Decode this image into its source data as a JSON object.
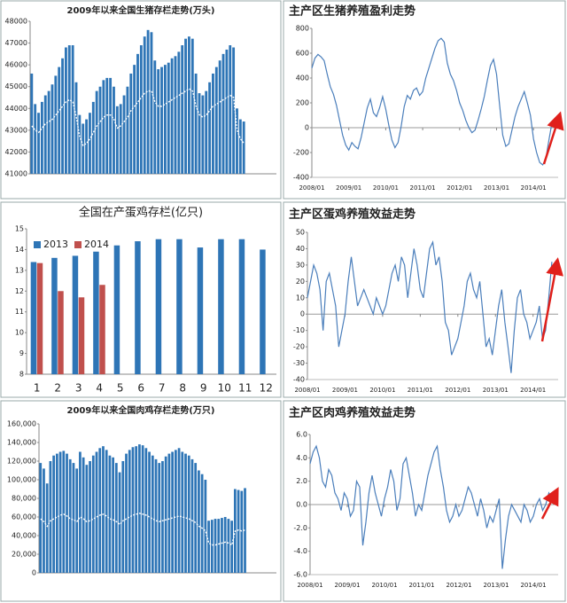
{
  "chart_data": [
    {
      "type": "bar",
      "title": "2009年以来全国生猪存栏走势(万头)",
      "ylim": [
        41000,
        48000
      ],
      "yticks": [
        41000,
        42000,
        43000,
        44000,
        45000,
        46000,
        47000,
        48000
      ],
      "series": [
        {
          "type": "bar",
          "color": "#2e75b6",
          "values": [
            45600,
            44200,
            43800,
            44300,
            44600,
            44800,
            45100,
            45500,
            45900,
            46300,
            46800,
            46900,
            46900,
            45200,
            43700,
            43300,
            43500,
            43800,
            44300,
            44800,
            45000,
            45300,
            45400,
            45400,
            45000,
            44100,
            44200,
            44600,
            45000,
            45600,
            46000,
            46500,
            46900,
            47300,
            47600,
            47500,
            46200,
            45800,
            45900,
            46000,
            46100,
            46300,
            46400,
            46600,
            46900,
            47200,
            47300,
            47200,
            45600,
            44700,
            44600,
            44800,
            45200,
            45600,
            45900,
            46200,
            46500,
            46700,
            46900,
            46800,
            44000,
            43500,
            43400,
            null,
            null,
            null,
            null,
            null,
            null,
            null,
            null,
            null
          ]
        },
        {
          "type": "line",
          "color": "#ffffff",
          "values": [
            43200,
            43000,
            42900,
            43100,
            43300,
            43400,
            43500,
            43700,
            43900,
            44100,
            44300,
            44400,
            44300,
            43600,
            42700,
            42300,
            42400,
            42600,
            42900,
            43200,
            43400,
            43600,
            43700,
            43700,
            43500,
            43100,
            43200,
            43400,
            43600,
            43900,
            44100,
            44300,
            44500,
            44700,
            44800,
            44800,
            44300,
            44100,
            44100,
            44200,
            44300,
            44400,
            44500,
            44600,
            44700,
            44800,
            44900,
            44800,
            44100,
            43700,
            43600,
            43700,
            43900,
            44100,
            44200,
            44300,
            44400,
            44500,
            44600,
            44500,
            43000,
            42600,
            42400,
            null,
            null,
            null,
            null,
            null,
            null,
            null,
            null,
            null
          ]
        }
      ]
    },
    {
      "type": "line",
      "title": "主产区生猪养殖盈利走势",
      "xlim": [
        0,
        80
      ],
      "xticks": [
        {
          "value": 0,
          "label": "2008/01"
        },
        {
          "value": 12,
          "label": "2009/01"
        },
        {
          "value": 24,
          "label": "2010/01"
        },
        {
          "value": 36,
          "label": "2011/01"
        },
        {
          "value": 48,
          "label": "2012/01"
        },
        {
          "value": 60,
          "label": "2013/01"
        },
        {
          "value": 72,
          "label": "2014/01"
        }
      ],
      "ylim": [
        -400,
        800
      ],
      "yticks": [
        -400,
        -200,
        0,
        200,
        400,
        600,
        800
      ],
      "series": [
        {
          "color": "#4a7ebb",
          "x": [
            0,
            1,
            2,
            3,
            4,
            5,
            6,
            7,
            8,
            9,
            10,
            11,
            12,
            13,
            14,
            15,
            16,
            17,
            18,
            19,
            20,
            21,
            22,
            23,
            24,
            25,
            26,
            27,
            28,
            29,
            30,
            31,
            32,
            33,
            34,
            35,
            36,
            37,
            38,
            39,
            40,
            41,
            42,
            43,
            44,
            45,
            46,
            47,
            48,
            49,
            50,
            51,
            52,
            53,
            54,
            55,
            56,
            57,
            58,
            59,
            60,
            61,
            62,
            63,
            64,
            65,
            66,
            67,
            68,
            69,
            70,
            71,
            72,
            73,
            74,
            75,
            76,
            77,
            78
          ],
          "values": [
            480,
            560,
            590,
            570,
            540,
            430,
            330,
            270,
            180,
            60,
            -60,
            -140,
            -180,
            -120,
            -150,
            -170,
            -80,
            40,
            160,
            230,
            120,
            90,
            160,
            250,
            150,
            20,
            -100,
            -160,
            -120,
            10,
            170,
            260,
            230,
            300,
            320,
            260,
            290,
            400,
            480,
            560,
            640,
            700,
            720,
            690,
            520,
            430,
            380,
            300,
            200,
            140,
            60,
            0,
            -40,
            -20,
            60,
            150,
            250,
            380,
            500,
            550,
            430,
            180,
            -60,
            -150,
            -130,
            -20,
            90,
            170,
            230,
            290,
            200,
            100,
            -90,
            -200,
            -280,
            -300,
            -250,
            -100,
            40
          ]
        }
      ]
    },
    {
      "type": "bar",
      "title": "全国在产蛋鸡存栏(亿只)",
      "categories": [
        "1",
        "2",
        "3",
        "4",
        "5",
        "6",
        "7",
        "8",
        "9",
        "10",
        "11",
        "12"
      ],
      "ylim": [
        8,
        15
      ],
      "yticks": [
        8,
        9,
        10,
        11,
        12,
        13,
        14,
        15
      ],
      "legend": "top-left",
      "series": [
        {
          "name": "2013",
          "color": "#2e75b6",
          "values": [
            13.4,
            13.6,
            13.7,
            13.9,
            14.2,
            14.4,
            14.5,
            14.5,
            14.1,
            14.5,
            14.5,
            14.0
          ]
        },
        {
          "name": "2014",
          "color": "#c0504d",
          "values": [
            13.35,
            12.0,
            11.7,
            12.3,
            null,
            null,
            null,
            null,
            null,
            null,
            null,
            null
          ]
        }
      ]
    },
    {
      "type": "line",
      "title": "主产区蛋鸡养殖效益走势",
      "xlim": [
        0,
        80
      ],
      "xticks": [
        {
          "value": 0,
          "label": "2008/01"
        },
        {
          "value": 12,
          "label": "2009/01"
        },
        {
          "value": 24,
          "label": "2010/01"
        },
        {
          "value": 36,
          "label": "2011/01"
        },
        {
          "value": 48,
          "label": "2012/01"
        },
        {
          "value": 60,
          "label": "2013/01"
        },
        {
          "value": 72,
          "label": "2014/01"
        }
      ],
      "ylim": [
        -40,
        50
      ],
      "yticks": [
        -40,
        -30,
        -20,
        -10,
        0,
        10,
        20,
        30,
        40,
        50
      ],
      "series": [
        {
          "color": "#4a7ebb",
          "x": [
            0,
            1,
            2,
            3,
            4,
            5,
            6,
            7,
            8,
            9,
            10,
            11,
            12,
            13,
            14,
            15,
            16,
            17,
            18,
            19,
            20,
            21,
            22,
            23,
            24,
            25,
            26,
            27,
            28,
            29,
            30,
            31,
            32,
            33,
            34,
            35,
            36,
            37,
            38,
            39,
            40,
            41,
            42,
            43,
            44,
            45,
            46,
            47,
            48,
            49,
            50,
            51,
            52,
            53,
            54,
            55,
            56,
            57,
            58,
            59,
            60,
            61,
            62,
            63,
            64,
            65,
            66,
            67,
            68,
            69,
            70,
            71,
            72,
            73,
            74,
            75,
            76,
            77,
            78
          ],
          "values": [
            10,
            20,
            30,
            25,
            15,
            -10,
            20,
            25,
            15,
            5,
            -20,
            -10,
            0,
            20,
            35,
            20,
            5,
            10,
            15,
            10,
            5,
            0,
            10,
            5,
            0,
            5,
            15,
            25,
            30,
            20,
            35,
            30,
            10,
            25,
            40,
            30,
            15,
            10,
            25,
            40,
            44,
            30,
            35,
            20,
            -5,
            -10,
            -25,
            -20,
            -15,
            -5,
            5,
            20,
            25,
            15,
            10,
            20,
            0,
            -20,
            -15,
            -25,
            -10,
            5,
            15,
            -5,
            -20,
            -36,
            -10,
            10,
            15,
            0,
            -5,
            -15,
            -10,
            -5,
            5,
            -15,
            -10,
            10,
            32
          ]
        }
      ]
    },
    {
      "type": "bar",
      "title": "2009年以来全国肉鸡存栏走势(万只)",
      "ylim": [
        0,
        160000
      ],
      "yticks": [
        0,
        {
          "value": 20000,
          "label": "20,000"
        },
        {
          "value": 40000,
          "label": "40,000"
        },
        {
          "value": 60000,
          "label": "60,000"
        },
        {
          "value": 80000,
          "label": "80,000"
        },
        {
          "value": 100000,
          "label": "100,000"
        },
        {
          "value": 120000,
          "label": "120,000"
        },
        {
          "value": 140000,
          "label": "140,000"
        },
        {
          "value": 160000,
          "label": "160,000"
        }
      ],
      "series": [
        {
          "type": "bar",
          "color": "#2e75b6",
          "values": [
            118000,
            112000,
            96000,
            120000,
            126000,
            128000,
            130000,
            131000,
            128000,
            122000,
            118000,
            112000,
            130000,
            124000,
            116000,
            120000,
            126000,
            130000,
            134000,
            136000,
            132000,
            126000,
            124000,
            118000,
            108000,
            120000,
            128000,
            132000,
            135000,
            136000,
            138000,
            137000,
            134000,
            130000,
            126000,
            122000,
            118000,
            120000,
            125000,
            128000,
            130000,
            132000,
            134000,
            130000,
            128000,
            126000,
            122000,
            118000,
            110000,
            106000,
            100000,
            56000,
            57000,
            58000,
            58000,
            59000,
            60000,
            58000,
            56000,
            90000,
            89000,
            88000,
            91000,
            null,
            null,
            null,
            null,
            null,
            null,
            null,
            null,
            null
          ]
        },
        {
          "type": "line",
          "color": "#ffffff",
          "values": [
            58000,
            55000,
            50000,
            56000,
            58000,
            60000,
            62000,
            63000,
            61000,
            58000,
            57000,
            55000,
            60000,
            58000,
            55000,
            56000,
            58000,
            60000,
            62000,
            63000,
            61000,
            58000,
            57000,
            55000,
            52000,
            56000,
            58000,
            60000,
            62000,
            63000,
            64000,
            63000,
            62000,
            60000,
            58000,
            56000,
            55000,
            56000,
            57000,
            58000,
            59000,
            60000,
            61000,
            60000,
            59000,
            58000,
            56000,
            54000,
            50000,
            48000,
            45000,
            32000,
            30000,
            30000,
            31000,
            32000,
            33000,
            32000,
            30000,
            45000,
            46000,
            45000,
            46000,
            null,
            null,
            null,
            null,
            null,
            null,
            null,
            null,
            null
          ]
        }
      ]
    },
    {
      "type": "line",
      "title": "主产区肉鸡养殖效益走势",
      "xlim": [
        0,
        80
      ],
      "xticks": [
        {
          "value": 0,
          "label": "2008/01"
        },
        {
          "value": 12,
          "label": "2009/01"
        },
        {
          "value": 24,
          "label": "2010/01"
        },
        {
          "value": 36,
          "label": "2011/01"
        },
        {
          "value": 48,
          "label": "2012/01"
        },
        {
          "value": 60,
          "label": "2013/01"
        },
        {
          "value": 72,
          "label": "2014/01"
        }
      ],
      "ylim": [
        -6,
        6
      ],
      "yticks": [
        {
          "value": -6,
          "label": "-6.0"
        },
        {
          "value": -4,
          "label": "-4.0"
        },
        {
          "value": -2,
          "label": "-2.0"
        },
        {
          "value": 0,
          "label": "0.0"
        },
        {
          "value": 2,
          "label": "2.0"
        },
        {
          "value": 4,
          "label": "4.0"
        },
        {
          "value": 6,
          "label": "6.0"
        }
      ],
      "series": [
        {
          "color": "#4a7ebb",
          "x": [
            0,
            1,
            2,
            3,
            4,
            5,
            6,
            7,
            8,
            9,
            10,
            11,
            12,
            13,
            14,
            15,
            16,
            17,
            18,
            19,
            20,
            21,
            22,
            23,
            24,
            25,
            26,
            27,
            28,
            29,
            30,
            31,
            32,
            33,
            34,
            35,
            36,
            37,
            38,
            39,
            40,
            41,
            42,
            43,
            44,
            45,
            46,
            47,
            48,
            49,
            50,
            51,
            52,
            53,
            54,
            55,
            56,
            57,
            58,
            59,
            60,
            61,
            62,
            63,
            64,
            65,
            66,
            67,
            68,
            69,
            70,
            71,
            72,
            73,
            74,
            75,
            76,
            77,
            78
          ],
          "values": [
            3.5,
            4.5,
            5.0,
            4.0,
            2.0,
            1.5,
            3.0,
            2.5,
            1.0,
            0.5,
            -0.5,
            1.0,
            0.5,
            -1.0,
            -0.5,
            2.0,
            1.5,
            -3.5,
            -1.5,
            1.0,
            2.5,
            1.0,
            0.0,
            -1.0,
            0.5,
            1.5,
            3.0,
            2.0,
            -0.5,
            0.5,
            3.5,
            4.0,
            2.5,
            1.0,
            -1.0,
            0.0,
            -0.5,
            1.0,
            2.5,
            3.5,
            4.5,
            5.0,
            3.0,
            1.5,
            -0.5,
            -1.5,
            -1.0,
            0.0,
            -1.0,
            -0.5,
            0.5,
            1.5,
            1.0,
            0.0,
            -1.0,
            0.5,
            -0.5,
            -2.0,
            -1.0,
            -1.5,
            -0.5,
            0.5,
            -5.5,
            -3.0,
            -1.0,
            0.0,
            -0.5,
            -1.0,
            -1.5,
            0.0,
            -0.5,
            -1.5,
            -1.0,
            0.0,
            0.5,
            -0.5,
            0.0,
            1.0,
            0.5
          ]
        }
      ]
    }
  ]
}
